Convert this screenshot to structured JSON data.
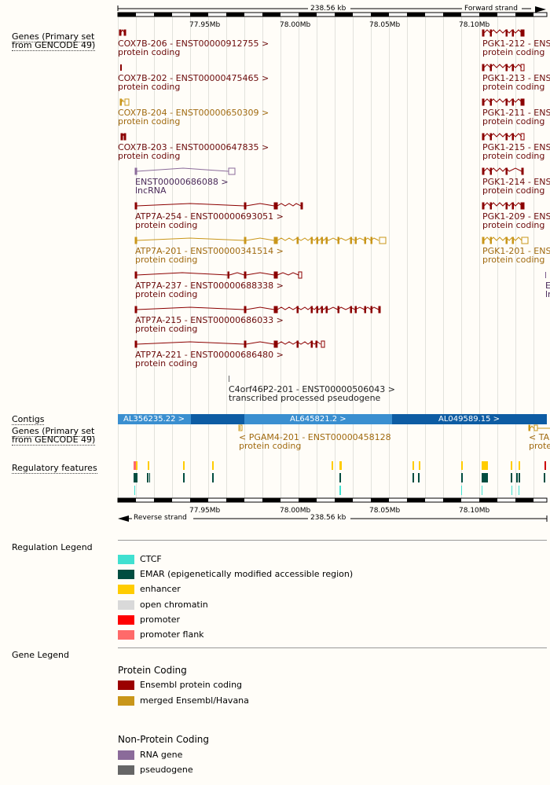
{
  "scale": {
    "top_span": "238.56 kb",
    "top_strand": "Forward strand",
    "bottom_span": "238.56 kb",
    "bottom_strand": "Reverse strand",
    "ticks": [
      "77.95Mb",
      "78.00Mb",
      "78.05Mb",
      "78.10Mb"
    ]
  },
  "tracks": {
    "genes_primary": "Genes (Primary set from GENCODE 49)",
    "genes_primary_line1": "Genes (Primary set",
    "genes_primary_line2": "from GENCODE 49)",
    "contigs": "Contigs",
    "regulatory": "Regulatory features"
  },
  "forward_genes": [
    {
      "name": "COX7B-206 - ENST00000912755 >",
      "biotype": "protein coding",
      "color": "#8b0000"
    },
    {
      "name": "COX7B-202 - ENST00000475465 >",
      "biotype": "protein coding",
      "color": "#8b0000"
    },
    {
      "name": "COX7B-204 - ENST00000650309 >",
      "biotype": "protein coding",
      "color": "#c9961a"
    },
    {
      "name": "COX7B-203 - ENST00000647835 >",
      "biotype": "protein coding",
      "color": "#8b0000"
    },
    {
      "name": "ENST00000686088 >",
      "biotype": "lncRNA",
      "color": "#8b6b9a"
    },
    {
      "name": "ATP7A-254 - ENST00000693051 >",
      "biotype": "protein coding",
      "color": "#8b0000"
    },
    {
      "name": "ATP7A-201 - ENST00000341514 >",
      "biotype": "protein coding",
      "color": "#c9961a"
    },
    {
      "name": "ATP7A-237 - ENST00000688338 >",
      "biotype": "protein coding",
      "color": "#8b0000"
    },
    {
      "name": "ATP7A-215 - ENST00000686033 >",
      "biotype": "protein coding",
      "color": "#8b0000"
    },
    {
      "name": "ATP7A-221 - ENST00000686480 >",
      "biotype": "protein coding",
      "color": "#8b0000"
    },
    {
      "name": "C4orf46P2-201 - ENST00000506043 >",
      "biotype": "transcribed processed pseudogene",
      "color": "#666666"
    }
  ],
  "pgk_genes": [
    {
      "name": "PGK1-212 - ENST",
      "biotype": "protein coding"
    },
    {
      "name": "PGK1-213 - ENST",
      "biotype": "protein coding"
    },
    {
      "name": "PGK1-211 - ENST",
      "biotype": "protein coding"
    },
    {
      "name": "PGK1-215 - ENST",
      "biotype": "protein coding"
    },
    {
      "name": "PGK1-214 - ENST",
      "biotype": "protein coding"
    },
    {
      "name": "PGK1-209 - ENST",
      "biotype": "protein coding"
    },
    {
      "name": "PGK1-201 - ENST",
      "biotype": "protein coding"
    }
  ],
  "edge_labels": {
    "e1": "E",
    "e2": "ln"
  },
  "contigs": [
    "AL356235.22 >",
    "AL645821.2 >",
    "AL049589.15 >"
  ],
  "reverse_genes": [
    {
      "name": "< PGAM4-201 - ENST00000458128",
      "biotype": "protein coding"
    },
    {
      "name": "< TA",
      "biotype": "prote"
    }
  ],
  "regulation_legend": {
    "title": "Regulation Legend",
    "items": [
      {
        "label": "CTCF",
        "color": "#40e0d0"
      },
      {
        "label": "EMAR (epigenetically modified accessible region)",
        "color": "#004d40"
      },
      {
        "label": "enhancer",
        "color": "#ffcc00"
      },
      {
        "label": "open chromatin",
        "color": "#d9d9d9"
      },
      {
        "label": "promoter",
        "color": "#ff0000"
      },
      {
        "label": "promoter flank",
        "color": "#ff6a6a"
      }
    ]
  },
  "gene_legend": {
    "title": "Gene Legend",
    "protein_coding_title": "Protein Coding",
    "protein_coding": [
      {
        "label": "Ensembl protein coding",
        "color": "#9b0000"
      },
      {
        "label": "merged Ensembl/Havana",
        "color": "#c9961a"
      }
    ],
    "non_protein_title": "Non-Protein Coding",
    "non_protein": [
      {
        "label": "RNA gene",
        "color": "#8b6b9a"
      },
      {
        "label": "pseudogene",
        "color": "#666666"
      }
    ]
  }
}
